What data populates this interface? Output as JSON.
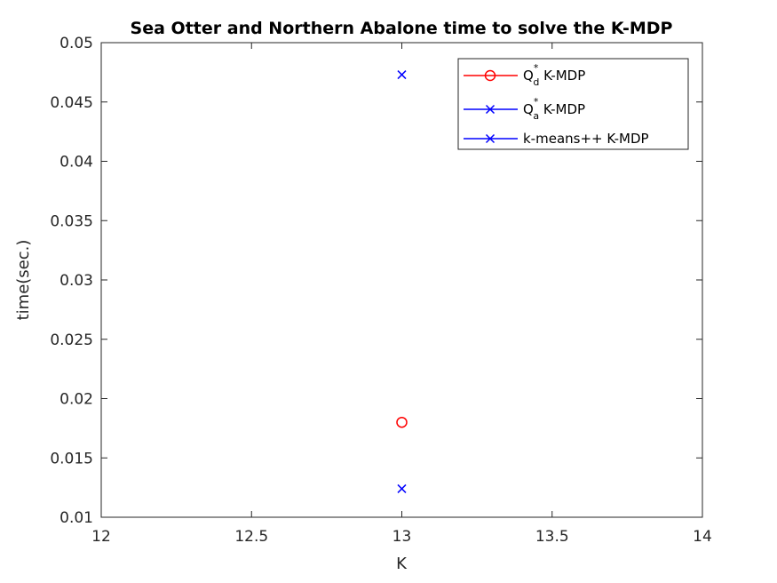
{
  "chart_data": {
    "type": "scatter",
    "title": "Sea Otter and Northern Abalone time to solve the K-MDP",
    "xlabel": "K",
    "ylabel": "time(sec.)",
    "xlim": [
      12,
      14
    ],
    "ylim": [
      0.01,
      0.05
    ],
    "xticks": [
      12,
      12.5,
      13,
      13.5,
      14
    ],
    "xtick_labels": [
      "12",
      "12.5",
      "13",
      "13.5",
      "14"
    ],
    "yticks": [
      0.01,
      0.015,
      0.02,
      0.025,
      0.03,
      0.035,
      0.04,
      0.045,
      0.05
    ],
    "ytick_labels": [
      "0.01",
      "0.015",
      "0.02",
      "0.025",
      "0.03",
      "0.035",
      "0.04",
      "0.045",
      "0.05"
    ],
    "grid": false,
    "legend_position": "top-right",
    "series": [
      {
        "name_main": "Q",
        "name_sup": "*",
        "name_sub": "d",
        "name_suffix": " K-MDP",
        "marker": "circle",
        "color": "#ff0000",
        "points": [
          {
            "x": 13,
            "y": 0.018
          }
        ]
      },
      {
        "name_main": "Q",
        "name_sup": "*",
        "name_sub": "a",
        "name_suffix": " K-MDP",
        "marker": "x",
        "color": "#0000ff",
        "points": [
          {
            "x": 13,
            "y": 0.0124
          }
        ]
      },
      {
        "name_main": "k-means++ K-MDP",
        "name_sup": "",
        "name_sub": "",
        "name_suffix": "",
        "marker": "x",
        "color": "#0000ff",
        "points": [
          {
            "x": 13,
            "y": 0.0473
          }
        ]
      }
    ]
  }
}
